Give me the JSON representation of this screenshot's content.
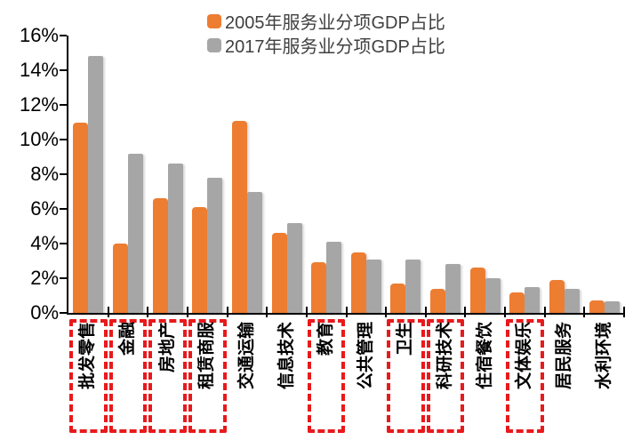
{
  "chart_data": {
    "type": "bar",
    "title": "",
    "categories": [
      "批发零售",
      "金融",
      "房地产",
      "租赁商服",
      "交通运输",
      "信息技术",
      "教育",
      "公共管理",
      "卫生",
      "科研技术",
      "住宿餐饮",
      "文体娱乐",
      "居民服务",
      "水利环境"
    ],
    "series": [
      {
        "name": "2005年服务业分项GDP占比",
        "color": "#ED7D31",
        "values": [
          11.0,
          4.0,
          6.6,
          6.1,
          11.1,
          4.6,
          2.9,
          3.5,
          1.7,
          1.4,
          2.6,
          1.2,
          1.9,
          0.7
        ]
      },
      {
        "name": "2017年服务业分项GDP占比",
        "color": "#A6A6A6",
        "values": [
          14.8,
          9.2,
          8.6,
          7.8,
          7.0,
          5.2,
          4.1,
          3.1,
          3.1,
          2.8,
          2.0,
          1.5,
          1.4,
          0.65
        ]
      }
    ],
    "xlabel": "",
    "ylabel": "",
    "ylim": [
      0,
      16
    ],
    "ytick_step": 2,
    "ytick_labels": [
      "0%",
      "2%",
      "4%",
      "6%",
      "8%",
      "10%",
      "12%",
      "14%",
      "16%"
    ],
    "grid": false,
    "legend_position": "top-center",
    "highlighted_categories": [
      "批发零售",
      "金融",
      "房地产",
      "租赁商服",
      "教育",
      "卫生",
      "科研技术",
      "文体娱乐"
    ],
    "highlight_box_color": "#E8191C",
    "axis_color": "#000000"
  }
}
